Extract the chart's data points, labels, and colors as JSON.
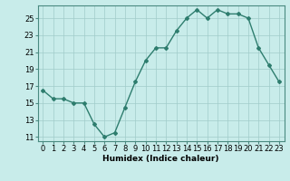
{
  "x": [
    0,
    1,
    2,
    3,
    4,
    5,
    6,
    7,
    8,
    9,
    10,
    11,
    12,
    13,
    14,
    15,
    16,
    17,
    18,
    19,
    20,
    21,
    22,
    23
  ],
  "y": [
    16.5,
    15.5,
    15.5,
    15.0,
    15.0,
    12.5,
    11.0,
    11.5,
    14.5,
    17.5,
    20.0,
    21.5,
    21.5,
    23.5,
    25.0,
    26.0,
    25.0,
    26.0,
    25.5,
    25.5,
    25.0,
    21.5,
    19.5,
    17.5
  ],
  "line_color": "#2e7d6e",
  "marker": "D",
  "marker_size": 2.0,
  "bg_color": "#c8ecea",
  "grid_color": "#a0ccca",
  "xlabel": "Humidex (Indice chaleur)",
  "xlim": [
    -0.5,
    23.5
  ],
  "ylim": [
    10.5,
    26.5
  ],
  "xticks": [
    0,
    1,
    2,
    3,
    4,
    5,
    6,
    7,
    8,
    9,
    10,
    11,
    12,
    13,
    14,
    15,
    16,
    17,
    18,
    19,
    20,
    21,
    22,
    23
  ],
  "yticks": [
    11,
    13,
    15,
    17,
    19,
    21,
    23,
    25
  ],
  "xlabel_fontsize": 6.5,
  "tick_fontsize": 6,
  "linewidth": 1.0
}
